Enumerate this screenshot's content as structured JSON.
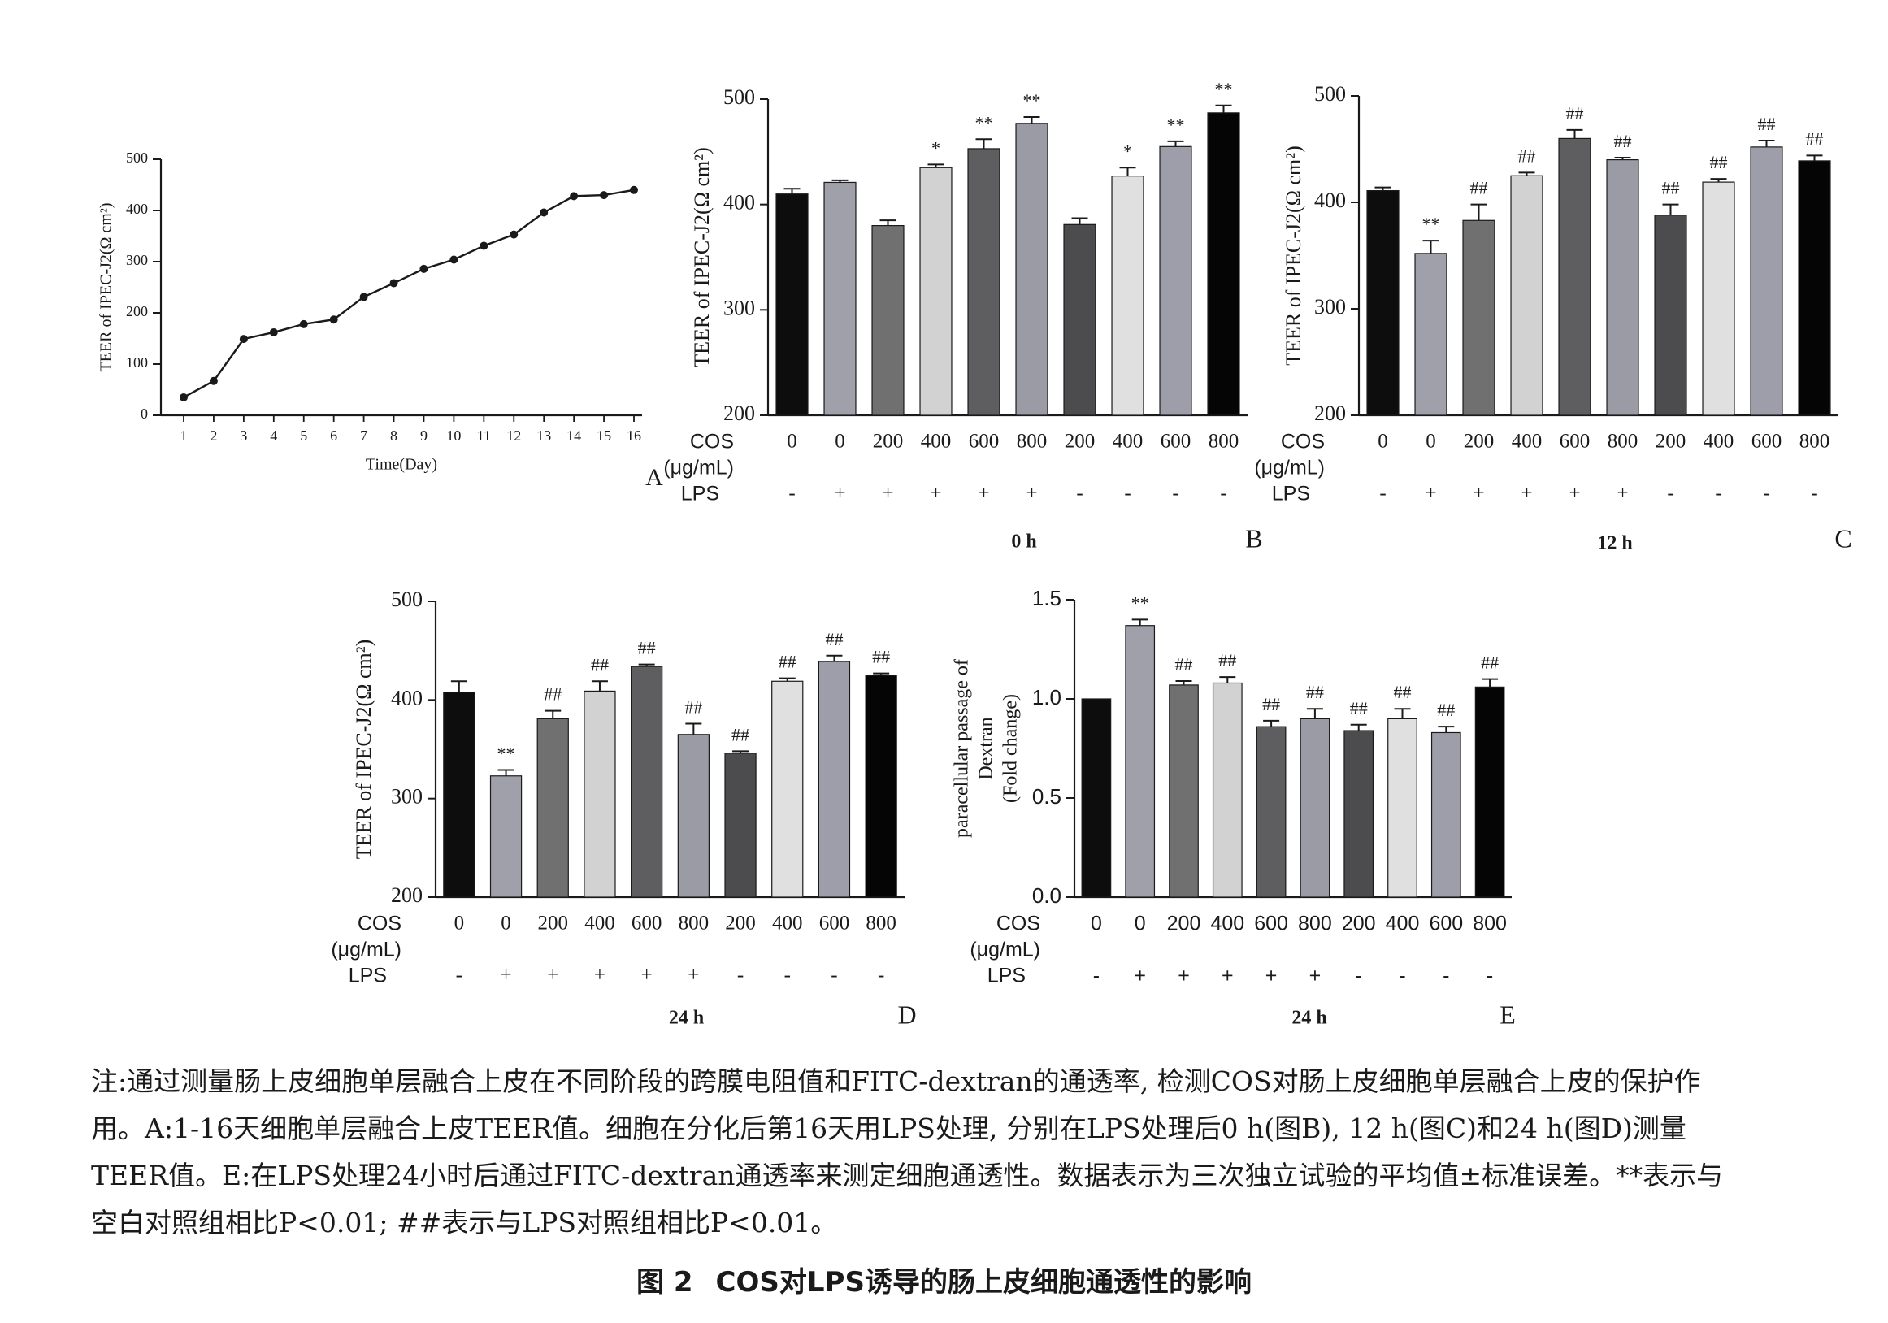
{
  "chart_data": [
    {
      "id": "A",
      "type": "line",
      "ylabel": "TEER of IPEC-J2(Ω cm²)",
      "xlabel": "Time(Day)",
      "ylim": [
        0,
        500
      ],
      "yticks": [
        "0",
        "100",
        "200",
        "300",
        "400",
        "500"
      ],
      "x": [
        1,
        2,
        3,
        4,
        5,
        6,
        7,
        8,
        9,
        10,
        11,
        12,
        13,
        14,
        15,
        16
      ],
      "values": [
        35,
        67,
        149,
        162,
        178,
        187,
        231,
        258,
        286,
        304,
        331,
        353,
        396,
        428,
        430,
        440
      ],
      "panel_label": "A"
    },
    {
      "id": "B",
      "type": "bar",
      "ylabel": "TEER of IPEC-J2(Ω cm²)",
      "ylim": [
        200,
        500
      ],
      "yticks": [
        "200",
        "300",
        "400",
        "500"
      ],
      "cos_label": "COS",
      "unit_label": "(μg/mL)",
      "lps_label": "LPS",
      "categories": [
        "0",
        "0",
        "200",
        "400",
        "600",
        "800",
        "200",
        "400",
        "600",
        "800"
      ],
      "lps": [
        "-",
        "+",
        "+",
        "+",
        "+",
        "+",
        "-",
        "-",
        "-",
        "-"
      ],
      "values": [
        410,
        421,
        380,
        435,
        453,
        477,
        381,
        427,
        455,
        487
      ],
      "errors": [
        5,
        2,
        5,
        3,
        9,
        6,
        6,
        8,
        5,
        7
      ],
      "marks": [
        "",
        "",
        "",
        "*",
        "**",
        "**",
        "",
        "*",
        "**",
        "**"
      ],
      "colors": [
        "#0d0d0d",
        "#a0a0aa",
        "#707070",
        "#d2d2d2",
        "#5e5e60",
        "#9b9ba6",
        "#4c4c4e",
        "#e0e0e0",
        "#9e9eaa",
        "#050505"
      ],
      "time_label": "0 h",
      "panel_label": "B"
    },
    {
      "id": "C",
      "type": "bar",
      "ylabel": "TEER of IPEC-J2(Ω cm²)",
      "ylim": [
        200,
        500
      ],
      "yticks": [
        "200",
        "300",
        "400",
        "500"
      ],
      "cos_label": "COS",
      "unit_label": "(μg/mL)",
      "lps_label": "LPS",
      "categories": [
        "0",
        "0",
        "200",
        "400",
        "600",
        "800",
        "200",
        "400",
        "600",
        "800"
      ],
      "lps": [
        "-",
        "+",
        "+",
        "+",
        "+",
        "+",
        "-",
        "-",
        "-",
        "-"
      ],
      "values": [
        411,
        352,
        383,
        425,
        460,
        440,
        388,
        419,
        452,
        439
      ],
      "errors": [
        3,
        12,
        15,
        3,
        8,
        2,
        10,
        3,
        6,
        5
      ],
      "marks": [
        "",
        "**",
        "##",
        "##",
        "##",
        "##",
        "##",
        "##",
        "##",
        "##"
      ],
      "colors": [
        "#0d0d0d",
        "#a0a0aa",
        "#707070",
        "#d2d2d2",
        "#5e5e60",
        "#9b9ba6",
        "#4c4c4e",
        "#e0e0e0",
        "#9e9eaa",
        "#050505"
      ],
      "time_label": "12 h",
      "panel_label": "C"
    },
    {
      "id": "D",
      "type": "bar",
      "ylabel": "TEER of IPEC-J2(Ω cm²)",
      "ylim": [
        200,
        500
      ],
      "yticks": [
        "200",
        "300",
        "400",
        "500"
      ],
      "cos_label": "COS",
      "unit_label": "(μg/mL)",
      "lps_label": "LPS",
      "categories": [
        "0",
        "0",
        "200",
        "400",
        "600",
        "800",
        "200",
        "400",
        "600",
        "800"
      ],
      "lps": [
        "-",
        "+",
        "+",
        "+",
        "+",
        "+",
        "-",
        "-",
        "-",
        "-"
      ],
      "values": [
        408,
        323,
        381,
        409,
        434,
        365,
        346,
        419,
        439,
        425
      ],
      "errors": [
        11,
        6,
        8,
        10,
        2,
        11,
        2,
        3,
        6,
        2
      ],
      "marks": [
        "",
        "**",
        "##",
        "##",
        "##",
        "##",
        "##",
        "##",
        "##",
        "##"
      ],
      "colors": [
        "#0d0d0d",
        "#a0a0aa",
        "#707070",
        "#d2d2d2",
        "#5e5e60",
        "#9b9ba6",
        "#4c4c4e",
        "#e0e0e0",
        "#9e9eaa",
        "#050505"
      ],
      "time_label": "24 h",
      "panel_label": "D"
    },
    {
      "id": "E",
      "type": "bar",
      "ylabel": "paracellular passage of Dextran (Fold change)",
      "ylabel_lines": [
        "paracellular passage of",
        "Dextran",
        "(Fold change)"
      ],
      "ylim": [
        0,
        1.5
      ],
      "yticks": [
        "0.0",
        "0.5",
        "1.0",
        "1.5"
      ],
      "cos_label": "COS",
      "unit_label": "(μg/mL)",
      "lps_label": "LPS",
      "categories": [
        "0",
        "0",
        "200",
        "400",
        "600",
        "800",
        "200",
        "400",
        "600",
        "800"
      ],
      "lps": [
        "-",
        "+",
        "+",
        "+",
        "+",
        "+",
        "-",
        "-",
        "-",
        "-"
      ],
      "values": [
        1.0,
        1.37,
        1.07,
        1.08,
        0.86,
        0.9,
        0.84,
        0.9,
        0.83,
        1.06
      ],
      "errors": [
        0,
        0.03,
        0.02,
        0.03,
        0.03,
        0.05,
        0.03,
        0.05,
        0.03,
        0.04
      ],
      "marks": [
        "",
        "**",
        "##",
        "##",
        "##",
        "##",
        "##",
        "##",
        "##",
        "##"
      ],
      "colors": [
        "#0d0d0d",
        "#a0a0aa",
        "#707070",
        "#d2d2d2",
        "#5e5e60",
        "#9b9ba6",
        "#4c4c4e",
        "#e0e0e0",
        "#9e9eaa",
        "#050505"
      ],
      "time_label": "24 h",
      "panel_label": "E"
    }
  ],
  "caption": {
    "line1": "注:通过测量肠上皮细胞单层融合上皮在不同阶段的跨膜电阻值和FITC-dextran的通透率, 检测COS对肠上皮细胞单层融合上皮的保护作",
    "line2": "用。A:1-16天细胞单层融合上皮TEER值。细胞在分化后第16天用LPS处理, 分别在LPS处理后0 h(图B), 12 h(图C)和24 h(图D)测量",
    "line3": "TEER值。E:在LPS处理24小时后通过FITC-dextran通透率来测定细胞通透性。数据表示为三次独立试验的平均值±标准误差。**表示与",
    "line4": "空白对照组相比P<0.01; ##表示与LPS对照组相比P<0.01。"
  },
  "figure_title": {
    "number": "图 2",
    "text": "COS对LPS诱导的肠上皮细胞通透性的影响"
  }
}
